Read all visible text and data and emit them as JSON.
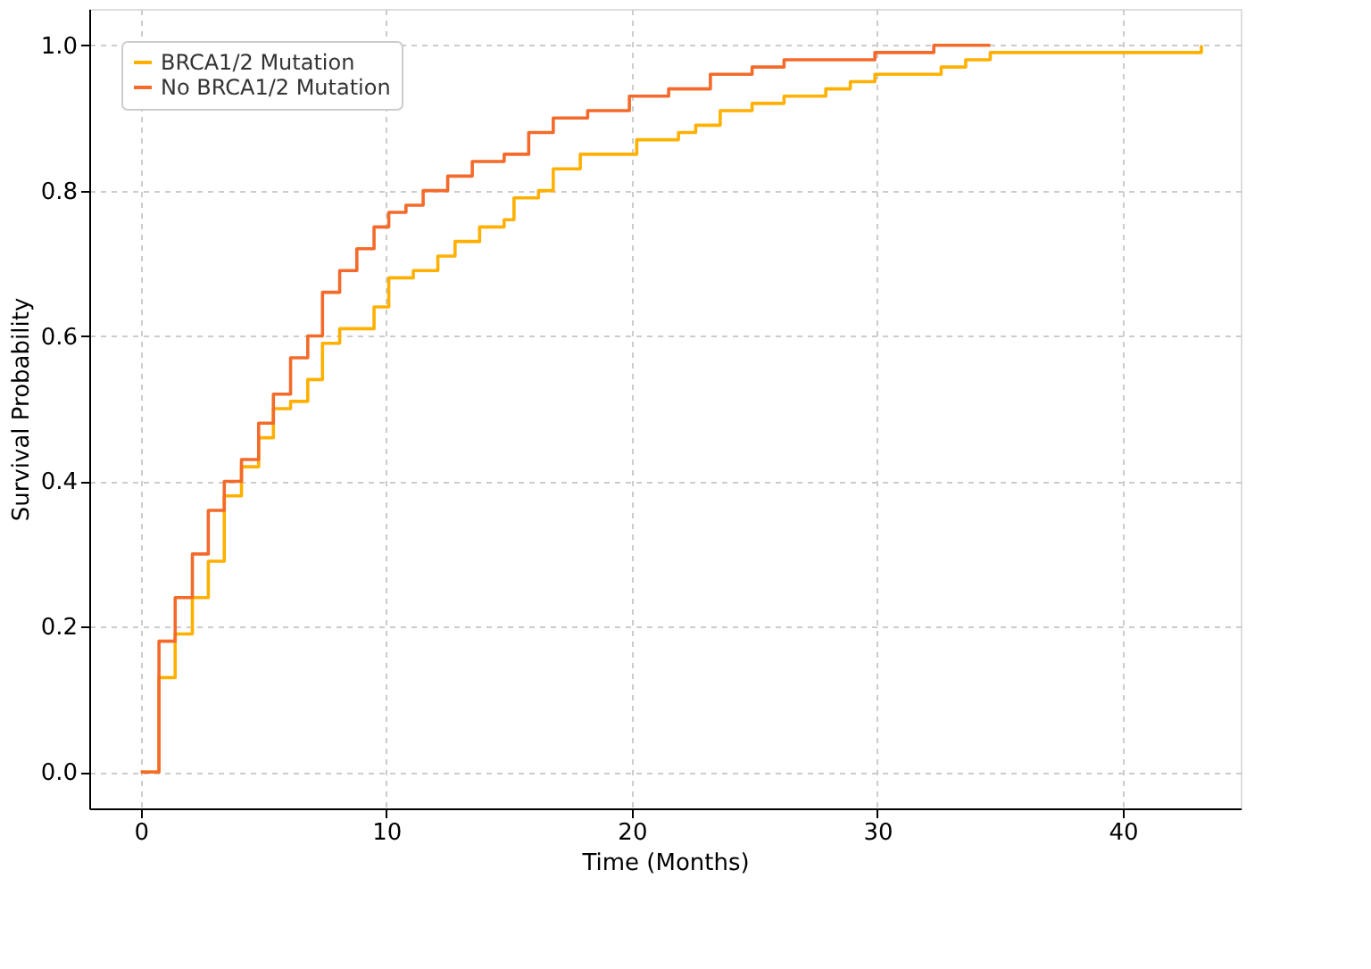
{
  "chart_data": {
    "type": "step",
    "xlabel": "Time (Months)",
    "ylabel": "Survival Probability",
    "xlim": [
      -2.1,
      44.8
    ],
    "ylim": [
      -0.05,
      1.05
    ],
    "xticks": [
      0,
      10,
      20,
      30,
      40
    ],
    "yticks": [
      {
        "value": 0,
        "label": "0.0"
      },
      {
        "value": 0.2,
        "label": "0.2"
      },
      {
        "value": 0.4,
        "label": "0.4"
      },
      {
        "value": 0.6,
        "label": "0.6"
      },
      {
        "value": 0.8,
        "label": "0.8"
      },
      {
        "value": 1,
        "label": "1.0"
      }
    ],
    "grid": true,
    "legend": "top left",
    "line_style": "solid",
    "marker": "none",
    "series": [
      {
        "name": "BRCA1/2 Mutation",
        "color": "#ffb000",
        "x": [
          0,
          0.74,
          1.4,
          2.1,
          2.75,
          3.4,
          4.1,
          4.8,
          5.4,
          6.1,
          6.8,
          7.4,
          8.1,
          9.1,
          9.5,
          10.1,
          11.1,
          12.1,
          12.8,
          13.8,
          14.8,
          15.2,
          16.2,
          16.8,
          17.9,
          19.5,
          20.2,
          21.9,
          22.6,
          23.6,
          24.9,
          26.2,
          27.9,
          28.9,
          29.9,
          32.6,
          33.6,
          34.6,
          35.3,
          43.2,
          43.2
        ],
        "values": [
          0,
          0.13,
          0.19,
          0.24,
          0.29,
          0.38,
          0.42,
          0.46,
          0.5,
          0.51,
          0.54,
          0.59,
          0.61,
          0.61,
          0.64,
          0.68,
          0.69,
          0.71,
          0.73,
          0.75,
          0.76,
          0.79,
          0.8,
          0.83,
          0.85,
          0.85,
          0.87,
          0.88,
          0.89,
          0.91,
          0.92,
          0.93,
          0.94,
          0.95,
          0.96,
          0.97,
          0.98,
          0.99,
          0.99,
          0.99,
          1.0
        ]
      },
      {
        "name": "No BRCA1/2 Mutation",
        "color": "#f46a2a",
        "x": [
          0,
          0.74,
          1.4,
          2.1,
          2.75,
          3.4,
          4.1,
          4.8,
          5.4,
          6.1,
          6.8,
          7.4,
          8.1,
          8.8,
          9.5,
          10.1,
          10.8,
          11.5,
          12.5,
          13.5,
          14.8,
          15.8,
          16.8,
          18.2,
          19.9,
          21.5,
          23.2,
          24.9,
          26.2,
          29.6,
          29.9,
          31.9,
          32.3,
          34.6
        ],
        "values": [
          0,
          0.18,
          0.24,
          0.3,
          0.36,
          0.4,
          0.43,
          0.48,
          0.52,
          0.57,
          0.6,
          0.66,
          0.69,
          0.72,
          0.75,
          0.77,
          0.78,
          0.8,
          0.82,
          0.84,
          0.85,
          0.88,
          0.9,
          0.91,
          0.93,
          0.94,
          0.96,
          0.97,
          0.98,
          0.98,
          0.99,
          0.99,
          1.0,
          1.0
        ]
      }
    ]
  }
}
